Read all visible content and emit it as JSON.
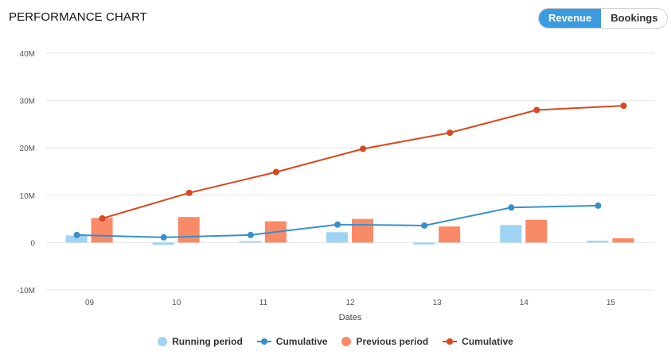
{
  "header": {
    "title": "PERFORMANCE CHART",
    "toggle_options": [
      "Revenue",
      "Bookings"
    ],
    "active_option": "Revenue"
  },
  "colors": {
    "running_bar": "#9fd3f3",
    "running_line": "#3691c9",
    "previous_bar": "#f98a68",
    "previous_line": "#d9481f",
    "toggle_active": "#3b9be0"
  },
  "chart_data": {
    "type": "bar",
    "title": "",
    "xlabel": "Dates",
    "ylabel": "",
    "categories": [
      "09",
      "10",
      "11",
      "12",
      "13",
      "14",
      "15"
    ],
    "ylim": [
      -10,
      40
    ],
    "yticks": [
      -10,
      0,
      10,
      20,
      30,
      40
    ],
    "ytick_labels": [
      "-10M",
      "0",
      "10M",
      "20M",
      "30M",
      "40M"
    ],
    "grid": true,
    "legend_position": "bottom",
    "series": [
      {
        "name": "Running period",
        "kind": "bar",
        "values": [
          1.5,
          -0.5,
          0.3,
          2.2,
          -0.4,
          3.7,
          0.4
        ]
      },
      {
        "name": "Cumulative",
        "kind": "line",
        "values": [
          1.6,
          1.1,
          1.6,
          3.8,
          3.6,
          7.4,
          7.8
        ]
      },
      {
        "name": "Previous period",
        "kind": "bar",
        "values": [
          5.2,
          5.4,
          4.5,
          5.0,
          3.4,
          4.8,
          0.9
        ]
      },
      {
        "name": "Cumulative",
        "kind": "line",
        "values": [
          5.1,
          10.5,
          14.9,
          19.8,
          23.2,
          28.0,
          28.9
        ]
      }
    ]
  }
}
